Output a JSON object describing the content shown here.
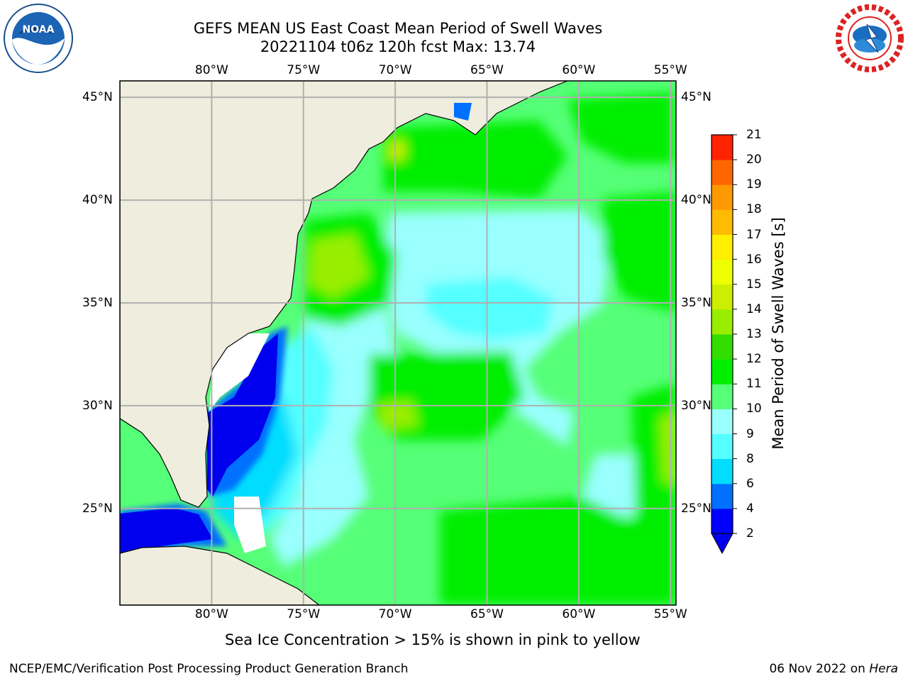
{
  "header": {
    "title_line1": "GEFS MEAN US East Coast Mean Period of Swell Waves",
    "title_line2": "20221104 t06z 120h fcst   Max: 13.74"
  },
  "logos": {
    "left": "NOAA",
    "right": "NATIONAL WEATHER SERVICE"
  },
  "map": {
    "lon_labels": [
      "80°W",
      "75°W",
      "70°W",
      "65°W",
      "60°W",
      "55°W"
    ],
    "lat_labels": [
      "45°N",
      "40°N",
      "35°N",
      "30°N",
      "25°N"
    ],
    "lon_values": [
      -80,
      -75,
      -70,
      -65,
      -60,
      -55
    ],
    "lat_values": [
      45,
      40,
      35,
      30,
      25
    ],
    "extent": {
      "lon": [
        -85,
        -54.7
      ],
      "lat": [
        20.3,
        45.8
      ]
    },
    "colors": {
      "land": "#efeddd",
      "grid": "#b0b0b0"
    }
  },
  "colorbar": {
    "label": "Mean Period of Swell Waves [s]",
    "ticks": [
      "2",
      "4",
      "6",
      "8",
      "9",
      "10",
      "11",
      "12",
      "13",
      "14",
      "15",
      "16",
      "17",
      "18",
      "19",
      "20",
      "21"
    ],
    "colors": [
      "#0000ff",
      "#0070ff",
      "#00ddff",
      "#55ffff",
      "#99ffff",
      "#55ff77",
      "#00ee00",
      "#33dd00",
      "#99ee00",
      "#ccee00",
      "#eeff00",
      "#ffee00",
      "#ffbb00",
      "#ff9900",
      "#ff6600",
      "#ff2200"
    ],
    "under_color": "#0000ee",
    "extend": "min"
  },
  "footer": {
    "note": "Sea Ice Concentration > 15% is shown in pink to yellow",
    "left": "NCEP/EMC/Verification Post Processing Product Generation Branch",
    "right_date": "06 Nov 2022 on ",
    "right_host": "Hera"
  }
}
